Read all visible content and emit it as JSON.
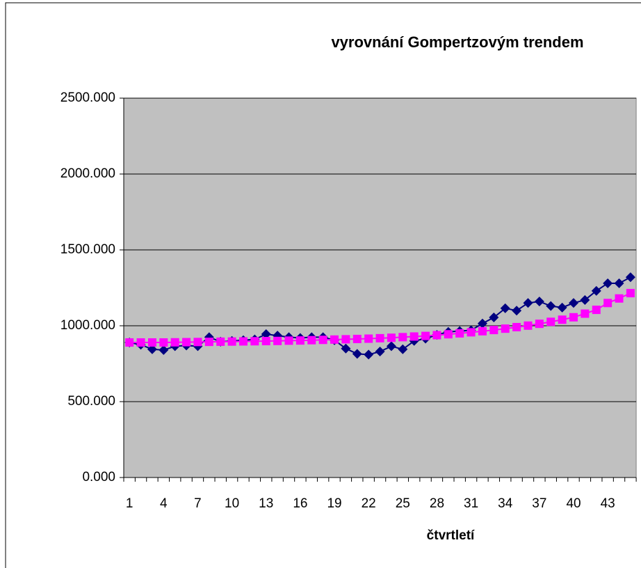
{
  "chart_data": {
    "type": "line",
    "title": "vyrovnání Gompertzovým trendem",
    "xlabel": "čtvrtletí",
    "categories": [
      "1",
      null,
      null,
      "4",
      null,
      null,
      "7",
      null,
      null,
      "10",
      null,
      null,
      "13",
      null,
      null,
      "16",
      null,
      null,
      "19",
      null,
      null,
      "22",
      null,
      null,
      "25",
      null,
      null,
      "28",
      null,
      null,
      "31",
      null,
      null,
      "34",
      null,
      null,
      "37",
      null,
      null,
      "40",
      null,
      null,
      "43",
      null,
      null
    ],
    "series": [
      {
        "color": "#000080",
        "marker": "diamond",
        "values": [
          890,
          875,
          845,
          840,
          865,
          870,
          865,
          925,
          895,
          900,
          905,
          910,
          945,
          935,
          925,
          920,
          925,
          925,
          905,
          850,
          815,
          810,
          830,
          865,
          845,
          900,
          915,
          940,
          960,
          965,
          970,
          1015,
          1055,
          1115,
          1100,
          1150,
          1160,
          1130,
          1120,
          1150,
          1170,
          1230,
          1280,
          1280,
          1320
        ]
      },
      {
        "color": "#ff00ff",
        "marker": "square",
        "values": [
          890,
          890,
          890,
          890,
          891,
          892,
          893,
          894,
          895,
          896,
          897,
          898,
          899,
          900,
          902,
          903,
          905,
          907,
          909,
          911,
          913,
          915,
          918,
          921,
          925,
          929,
          933,
          938,
          944,
          950,
          957,
          964,
          972,
          981,
          991,
          1001,
          1013,
          1026,
          1040,
          1056,
          1080,
          1105,
          1150,
          1180,
          1215
        ]
      }
    ],
    "ylim": [
      0,
      2500
    ],
    "yticks": [
      {
        "value": 0,
        "label": "0.000"
      },
      {
        "value": 500,
        "label": "500.000"
      },
      {
        "value": 1000,
        "label": "1000.000"
      },
      {
        "value": 1500,
        "label": "1500.000"
      },
      {
        "value": 2000,
        "label": "2000.000"
      },
      {
        "value": 2500,
        "label": "2500.000"
      }
    ],
    "grid": true,
    "plot_background": "#c0c0c0"
  }
}
